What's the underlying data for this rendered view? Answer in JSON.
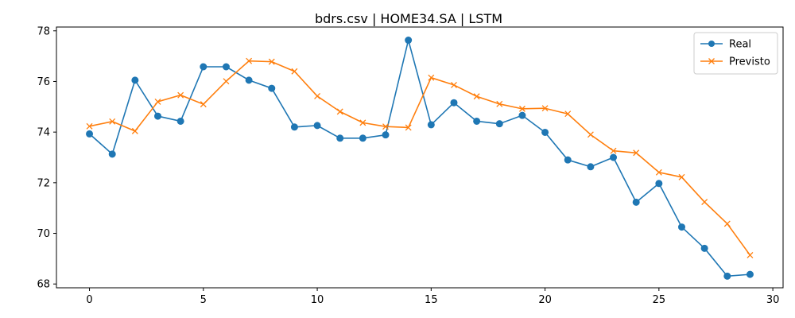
{
  "chart_data": {
    "type": "line",
    "title": "bdrs.csv | HOME34.SA | LSTM",
    "xlabel": "",
    "ylabel": "",
    "xlim": [
      -1.45,
      30.45
    ],
    "ylim": [
      67.85,
      78.15
    ],
    "xticks": [
      0,
      5,
      10,
      15,
      20,
      25,
      30
    ],
    "yticks": [
      68,
      70,
      72,
      74,
      76,
      78
    ],
    "grid": false,
    "legend_position": "top-right",
    "x": [
      0,
      1,
      2,
      3,
      4,
      5,
      6,
      7,
      8,
      9,
      10,
      11,
      12,
      13,
      14,
      15,
      16,
      17,
      18,
      19,
      20,
      21,
      22,
      23,
      24,
      25,
      26,
      27,
      28,
      29
    ],
    "series": [
      {
        "name": "Real",
        "color": "#1f77b4",
        "marker": "circle",
        "values": [
          73.93,
          73.13,
          76.05,
          74.63,
          74.43,
          76.58,
          76.58,
          76.05,
          75.73,
          74.2,
          74.26,
          73.76,
          73.76,
          73.89,
          77.63,
          74.29,
          75.16,
          74.43,
          74.33,
          74.66,
          73.99,
          72.9,
          72.63,
          73.0,
          71.23,
          71.97,
          70.25,
          69.41,
          68.31,
          68.38
        ]
      },
      {
        "name": "Previsto",
        "color": "#ff7f0e",
        "marker": "x",
        "values": [
          74.23,
          74.42,
          74.04,
          75.2,
          75.46,
          75.1,
          76.01,
          76.81,
          76.78,
          76.4,
          75.42,
          74.81,
          74.37,
          74.22,
          74.18,
          76.15,
          75.86,
          75.41,
          75.11,
          74.92,
          74.94,
          74.72,
          73.9,
          73.26,
          73.18,
          72.41,
          72.22,
          71.24,
          70.38,
          69.14
        ]
      }
    ]
  }
}
